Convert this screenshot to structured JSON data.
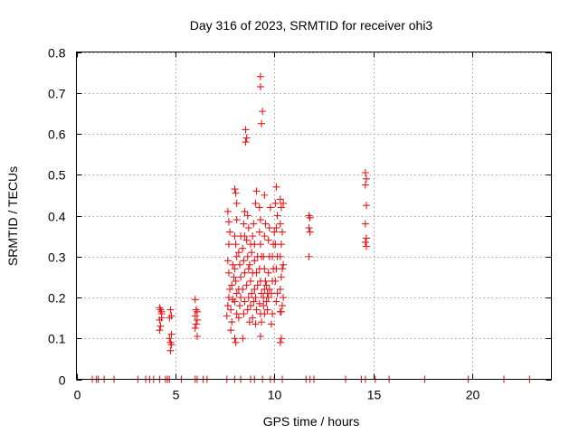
{
  "chart_data": {
    "type": "scatter",
    "title": "Day 316 of 2023, SRMTID for receiver ohi3",
    "xlabel": "GPS time / hours",
    "ylabel": "SRMTID / TECUs",
    "xlim": [
      0,
      24
    ],
    "ylim": [
      0,
      0.8
    ],
    "xticks": [
      0,
      5,
      10,
      15,
      20
    ],
    "yticks": [
      0,
      0.1,
      0.2,
      0.3,
      0.4,
      0.5,
      0.6,
      0.7,
      0.8
    ],
    "xtick_labels": [
      "0",
      "5",
      "10",
      "15",
      "20"
    ],
    "ytick_labels": [
      "0",
      "0.1",
      "0.2",
      "0.3",
      "0.4",
      "0.5",
      "0.6",
      "0.7",
      "0.8"
    ],
    "grid": true,
    "marker": "+",
    "series": [
      {
        "name": "ohi3",
        "color": "#e41a1c",
        "points": [
          [
            0.8,
            0
          ],
          [
            1.0,
            0
          ],
          [
            1.1,
            0
          ],
          [
            1.4,
            0
          ],
          [
            1.9,
            0
          ],
          [
            3.1,
            0
          ],
          [
            3.5,
            0
          ],
          [
            3.7,
            0
          ],
          [
            3.9,
            0
          ],
          [
            4.2,
            0
          ],
          [
            4.5,
            0
          ],
          [
            4.6,
            0
          ],
          [
            4.7,
            0
          ],
          [
            5.3,
            0
          ],
          [
            6.0,
            0
          ],
          [
            6.1,
            0
          ],
          [
            6.4,
            0
          ],
          [
            6.6,
            0
          ],
          [
            7.6,
            0
          ],
          [
            8.0,
            0
          ],
          [
            8.3,
            0
          ],
          [
            8.8,
            0
          ],
          [
            9.0,
            0
          ],
          [
            9.4,
            0
          ],
          [
            9.8,
            0
          ],
          [
            10.0,
            0
          ],
          [
            10.4,
            0
          ],
          [
            11.6,
            0
          ],
          [
            11.8,
            0
          ],
          [
            12.0,
            0
          ],
          [
            13.6,
            0
          ],
          [
            14.4,
            0
          ],
          [
            14.6,
            0
          ],
          [
            15.1,
            0
          ],
          [
            15.8,
            0
          ],
          [
            17.6,
            0
          ],
          [
            19.8,
            0
          ],
          [
            21.6,
            0
          ],
          [
            22.9,
            0
          ],
          [
            4.2,
            0.175
          ],
          [
            4.25,
            0.17
          ],
          [
            4.3,
            0.16
          ],
          [
            4.2,
            0.145
          ],
          [
            4.3,
            0.15
          ],
          [
            4.25,
            0.13
          ],
          [
            4.2,
            0.12
          ],
          [
            4.3,
            0.165
          ],
          [
            4.75,
            0.17
          ],
          [
            4.8,
            0.155
          ],
          [
            4.7,
            0.15
          ],
          [
            4.8,
            0.11
          ],
          [
            4.75,
            0.09
          ],
          [
            4.8,
            0.085
          ],
          [
            4.75,
            0.07
          ],
          [
            4.7,
            0.1
          ],
          [
            6.0,
            0.195
          ],
          [
            6.05,
            0.17
          ],
          [
            6.1,
            0.165
          ],
          [
            6.0,
            0.155
          ],
          [
            6.1,
            0.145
          ],
          [
            6.05,
            0.135
          ],
          [
            6.0,
            0.125
          ],
          [
            6.1,
            0.105
          ],
          [
            7.6,
            0.155
          ],
          [
            7.65,
            0.18
          ],
          [
            7.7,
            0.2
          ],
          [
            7.75,
            0.22
          ],
          [
            7.7,
            0.26
          ],
          [
            7.65,
            0.29
          ],
          [
            7.7,
            0.33
          ],
          [
            7.75,
            0.36
          ],
          [
            7.7,
            0.385
          ],
          [
            7.65,
            0.41
          ],
          [
            7.8,
            0.12
          ],
          [
            7.85,
            0.14
          ],
          [
            7.8,
            0.17
          ],
          [
            7.9,
            0.195
          ],
          [
            7.85,
            0.23
          ],
          [
            7.95,
            0.25
          ],
          [
            7.9,
            0.28
          ],
          [
            8.0,
            0.1
          ],
          [
            8.05,
            0.09
          ],
          [
            8.1,
            0.16
          ],
          [
            8.0,
            0.19
          ],
          [
            8.1,
            0.21
          ],
          [
            8.05,
            0.24
          ],
          [
            8.0,
            0.27
          ],
          [
            8.1,
            0.3
          ],
          [
            8.05,
            0.33
          ],
          [
            8.0,
            0.35
          ],
          [
            8.1,
            0.43
          ],
          [
            8.0,
            0.465
          ],
          [
            8.05,
            0.455
          ],
          [
            8.1,
            0.39
          ],
          [
            8.2,
            0.15
          ],
          [
            8.25,
            0.18
          ],
          [
            8.3,
            0.2
          ],
          [
            8.2,
            0.22
          ],
          [
            8.3,
            0.25
          ],
          [
            8.25,
            0.28
          ],
          [
            8.2,
            0.31
          ],
          [
            8.3,
            0.35
          ],
          [
            8.4,
            0.1
          ],
          [
            8.45,
            0.16
          ],
          [
            8.5,
            0.19
          ],
          [
            8.4,
            0.22
          ],
          [
            8.5,
            0.26
          ],
          [
            8.45,
            0.29
          ],
          [
            8.4,
            0.32
          ],
          [
            8.5,
            0.35
          ],
          [
            8.45,
            0.38
          ],
          [
            8.5,
            0.41
          ],
          [
            8.55,
            0.61
          ],
          [
            8.6,
            0.59
          ],
          [
            8.55,
            0.58
          ],
          [
            8.65,
            0.17
          ],
          [
            8.7,
            0.2
          ],
          [
            8.6,
            0.23
          ],
          [
            8.7,
            0.27
          ],
          [
            8.65,
            0.3
          ],
          [
            8.6,
            0.34
          ],
          [
            8.7,
            0.37
          ],
          [
            8.65,
            0.4
          ],
          [
            8.75,
            0.14
          ],
          [
            8.8,
            0.18
          ],
          [
            8.85,
            0.21
          ],
          [
            8.8,
            0.24
          ],
          [
            8.75,
            0.28
          ],
          [
            8.85,
            0.31
          ],
          [
            8.8,
            0.33
          ],
          [
            8.9,
            0.35
          ],
          [
            8.95,
            0.38
          ],
          [
            8.9,
            0.15
          ],
          [
            8.95,
            0.19
          ],
          [
            9.0,
            0.22
          ],
          [
            8.9,
            0.26
          ],
          [
            9.0,
            0.29
          ],
          [
            9.05,
            0.135
          ],
          [
            9.1,
            0.17
          ],
          [
            9.05,
            0.2
          ],
          [
            9.15,
            0.23
          ],
          [
            9.1,
            0.26
          ],
          [
            9.0,
            0.33
          ],
          [
            9.05,
            0.43
          ],
          [
            9.1,
            0.46
          ],
          [
            9.15,
            0.3
          ],
          [
            9.3,
            0.74
          ],
          [
            9.3,
            0.715
          ],
          [
            9.4,
            0.655
          ],
          [
            9.35,
            0.625
          ],
          [
            9.25,
            0.42
          ],
          [
            9.3,
            0.39
          ],
          [
            9.25,
            0.36
          ],
          [
            9.3,
            0.33
          ],
          [
            9.35,
            0.3
          ],
          [
            9.25,
            0.27
          ],
          [
            9.3,
            0.24
          ],
          [
            9.35,
            0.21
          ],
          [
            9.25,
            0.185
          ],
          [
            9.3,
            0.16
          ],
          [
            9.35,
            0.14
          ],
          [
            9.3,
            0.105
          ],
          [
            9.45,
            0.2
          ],
          [
            9.5,
            0.22
          ],
          [
            9.45,
            0.18
          ],
          [
            9.5,
            0.16
          ],
          [
            9.55,
            0.24
          ],
          [
            9.5,
            0.27
          ],
          [
            9.45,
            0.3
          ],
          [
            9.5,
            0.35
          ],
          [
            9.55,
            0.38
          ],
          [
            9.5,
            0.45
          ],
          [
            9.6,
            0.19
          ],
          [
            9.65,
            0.21
          ],
          [
            9.6,
            0.23
          ],
          [
            9.65,
            0.17
          ],
          [
            9.7,
            0.2
          ],
          [
            9.75,
            0.22
          ],
          [
            9.7,
            0.26
          ],
          [
            9.75,
            0.3
          ],
          [
            9.7,
            0.34
          ],
          [
            9.75,
            0.37
          ],
          [
            9.8,
            0.42
          ],
          [
            9.85,
            0.135
          ],
          [
            9.9,
            0.16
          ],
          [
            9.85,
            0.21
          ],
          [
            9.9,
            0.24
          ],
          [
            9.95,
            0.27
          ],
          [
            9.9,
            0.3
          ],
          [
            9.95,
            0.33
          ],
          [
            10.0,
            0.36
          ],
          [
            10.1,
            0.47
          ],
          [
            10.05,
            0.43
          ],
          [
            10.15,
            0.4
          ],
          [
            10.1,
            0.37
          ],
          [
            10.05,
            0.33
          ],
          [
            10.15,
            0.3
          ],
          [
            10.1,
            0.27
          ],
          [
            10.05,
            0.24
          ],
          [
            10.15,
            0.21
          ],
          [
            10.1,
            0.19
          ],
          [
            10.3,
            0.44
          ],
          [
            10.35,
            0.42
          ],
          [
            10.3,
            0.38
          ],
          [
            10.4,
            0.36
          ],
          [
            10.35,
            0.33
          ],
          [
            10.3,
            0.3
          ],
          [
            10.4,
            0.27
          ],
          [
            10.35,
            0.25
          ],
          [
            10.3,
            0.22
          ],
          [
            10.4,
            0.18
          ],
          [
            10.35,
            0.165
          ],
          [
            10.3,
            0.165
          ],
          [
            10.35,
            0.1
          ],
          [
            10.3,
            0.09
          ],
          [
            10.45,
            0.43
          ],
          [
            10.45,
            0.2
          ],
          [
            10.45,
            0.28
          ],
          [
            11.75,
            0.4
          ],
          [
            11.8,
            0.395
          ],
          [
            11.75,
            0.37
          ],
          [
            11.8,
            0.36
          ],
          [
            11.75,
            0.3
          ],
          [
            14.6,
            0.505
          ],
          [
            14.65,
            0.49
          ],
          [
            14.6,
            0.475
          ],
          [
            14.65,
            0.425
          ],
          [
            14.6,
            0.38
          ],
          [
            14.65,
            0.345
          ],
          [
            14.6,
            0.335
          ],
          [
            14.65,
            0.325
          ]
        ]
      }
    ]
  }
}
